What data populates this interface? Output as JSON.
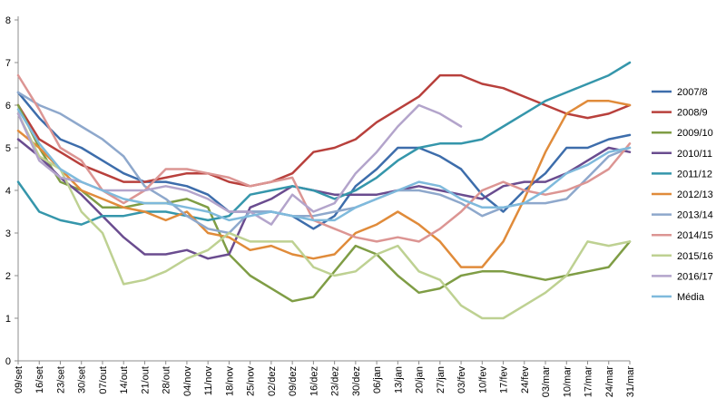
{
  "chart_data": {
    "type": "line",
    "categories": [
      "09/set",
      "16/set",
      "23/set",
      "30/set",
      "07/out",
      "14/out",
      "21/out",
      "28/out",
      "04/nov",
      "11/nov",
      "18/nov",
      "25/nov",
      "02/dez",
      "09/dez",
      "16/dez",
      "23/dez",
      "30/dez",
      "06/jan",
      "13/jan",
      "20/jan",
      "27/jan",
      "03/fev",
      "10/fev",
      "17/fev",
      "24/fev",
      "03/mar",
      "10/mar",
      "17/mar",
      "24/mar",
      "31/mar"
    ],
    "ylim": [
      0,
      8
    ],
    "yticks": [
      0,
      1,
      2,
      3,
      4,
      5,
      6,
      7,
      8
    ],
    "grid": false,
    "legend_position": "right",
    "series": [
      {
        "name": "2007/8",
        "color": "#3d6dab",
        "values": [
          6.3,
          5.7,
          5.2,
          5.0,
          4.7,
          4.4,
          4.2,
          4.2,
          4.1,
          3.9,
          3.5,
          3.5,
          3.5,
          3.4,
          3.1,
          3.4,
          4.1,
          4.5,
          5.0,
          5.0,
          4.8,
          4.5,
          3.9,
          3.5,
          4.0,
          4.4,
          5.0,
          5.0,
          5.2,
          5.3
        ]
      },
      {
        "name": "2008/9",
        "color": "#b8403c",
        "values": [
          6.0,
          5.2,
          4.9,
          4.6,
          4.4,
          4.2,
          4.2,
          4.3,
          4.4,
          4.4,
          4.2,
          4.1,
          4.2,
          4.4,
          4.9,
          5.0,
          5.2,
          5.6,
          5.9,
          6.2,
          6.7,
          6.7,
          6.5,
          6.4,
          6.2,
          6.0,
          5.8,
          5.7,
          5.8,
          6.0
        ]
      },
      {
        "name": "2009/10",
        "color": "#7f9d45",
        "values": [
          6.0,
          5.0,
          4.2,
          4.0,
          3.6,
          3.6,
          3.7,
          3.7,
          3.8,
          3.6,
          2.5,
          2.0,
          1.7,
          1.4,
          1.5,
          2.1,
          2.7,
          2.5,
          2.0,
          1.6,
          1.7,
          2.0,
          2.1,
          2.1,
          2.0,
          1.9,
          2.0,
          2.1,
          2.2,
          2.8
        ]
      },
      {
        "name": "2010/11",
        "color": "#6a4c8f",
        "values": [
          5.2,
          4.8,
          4.3,
          3.9,
          3.4,
          2.9,
          2.5,
          2.5,
          2.6,
          2.4,
          2.5,
          3.6,
          3.8,
          4.1,
          4.0,
          3.9,
          3.9,
          3.9,
          4.0,
          4.1,
          4.0,
          3.9,
          3.8,
          4.1,
          4.2,
          4.2,
          4.4,
          4.7,
          5.0,
          4.9
        ]
      },
      {
        "name": "2011/12",
        "color": "#3596ab",
        "values": [
          4.2,
          3.5,
          3.3,
          3.2,
          3.4,
          3.4,
          3.5,
          3.5,
          3.4,
          3.3,
          3.4,
          3.9,
          4.0,
          4.1,
          4.0,
          3.8,
          4.0,
          4.3,
          4.7,
          5.0,
          5.1,
          5.1,
          5.2,
          5.5,
          5.8,
          6.1,
          6.3,
          6.5,
          6.7,
          7.0
        ]
      },
      {
        "name": "2012/13",
        "color": "#e08b3a",
        "values": [
          5.4,
          5.0,
          4.5,
          4.0,
          3.8,
          3.6,
          3.5,
          3.3,
          3.5,
          3.0,
          2.9,
          2.6,
          2.7,
          2.5,
          2.4,
          2.5,
          3.0,
          3.2,
          3.5,
          3.2,
          2.8,
          2.2,
          2.2,
          2.8,
          3.8,
          4.9,
          5.8,
          6.1,
          6.1,
          6.0
        ]
      },
      {
        "name": "2013/14",
        "color": "#8ea8cc",
        "values": [
          6.3,
          6.0,
          5.8,
          5.5,
          5.2,
          4.8,
          4.1,
          3.8,
          3.4,
          3.1,
          3.0,
          3.5,
          3.5,
          3.4,
          3.4,
          3.5,
          3.6,
          3.8,
          4.0,
          4.0,
          3.9,
          3.7,
          3.4,
          3.6,
          3.7,
          3.7,
          3.8,
          4.3,
          4.8,
          5.0
        ]
      },
      {
        "name": "2014/15",
        "color": "#dc9593",
        "values": [
          6.7,
          5.9,
          5.0,
          4.7,
          4.0,
          3.7,
          4.0,
          4.5,
          4.5,
          4.4,
          4.3,
          4.1,
          4.2,
          4.3,
          3.3,
          3.1,
          2.9,
          2.8,
          2.9,
          2.8,
          3.1,
          3.5,
          4.0,
          4.2,
          4.0,
          3.9,
          4.0,
          4.2,
          4.5,
          5.1
        ]
      },
      {
        "name": "2015/16",
        "color": "#bed192",
        "values": [
          5.8,
          4.8,
          4.5,
          3.5,
          3.0,
          1.8,
          1.9,
          2.1,
          2.4,
          2.6,
          3.0,
          2.8,
          2.8,
          2.8,
          2.2,
          2.0,
          2.1,
          2.5,
          2.7,
          2.1,
          1.9,
          1.3,
          1.0,
          1.0,
          1.3,
          1.6,
          2.0,
          2.8,
          2.7,
          2.8
        ]
      },
      {
        "name": "2016/17",
        "color": "#b3a4cb",
        "values": [
          5.8,
          4.7,
          4.3,
          4.2,
          4.0,
          4.0,
          4.0,
          4.1,
          4.0,
          3.8,
          3.5,
          3.5,
          3.2,
          3.9,
          3.5,
          3.7,
          4.4,
          4.9,
          5.5,
          6.0,
          5.8,
          5.5,
          null,
          null,
          null,
          null,
          null,
          null,
          null,
          null
        ]
      },
      {
        "name": "Média",
        "color": "#7fbadc",
        "values": [
          5.9,
          5.1,
          4.5,
          4.2,
          4.0,
          3.8,
          3.7,
          3.7,
          3.6,
          3.5,
          3.3,
          3.4,
          3.5,
          3.4,
          3.3,
          3.3,
          3.6,
          3.8,
          4.0,
          4.2,
          4.1,
          3.8,
          3.6,
          3.6,
          3.7,
          4.0,
          4.4,
          4.6,
          4.9,
          5.0
        ]
      }
    ]
  }
}
